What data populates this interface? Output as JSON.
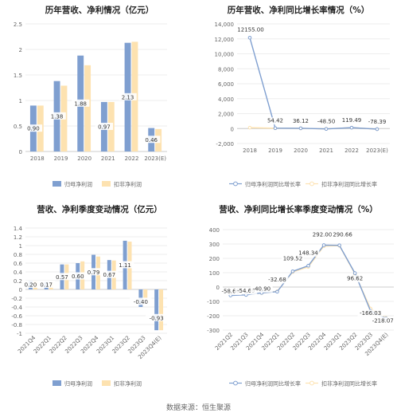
{
  "source_text": "数据来源：恒生聚源",
  "colors": {
    "blue": "#7f9fd0",
    "cream": "#fde2b0",
    "axis_text": "#666666",
    "grid": "#eeeeee",
    "title": "#222222"
  },
  "chart_data": [
    {
      "type": "bar",
      "title": "历年营收、净利情况（亿元）",
      "categories": [
        "2018",
        "2019",
        "2020",
        "2021",
        "2022",
        "2023(E)"
      ],
      "series": [
        {
          "name": "归母净利润",
          "values": [
            0.9,
            1.38,
            1.88,
            0.97,
            2.13,
            0.46
          ]
        },
        {
          "name": "扣非净利润",
          "values": [
            0.9,
            1.29,
            1.69,
            0.97,
            2.15,
            0.44
          ]
        }
      ],
      "data_labels": [
        "0.90",
        "1.38",
        "1.88",
        "0.97",
        "2.13",
        "0.46"
      ],
      "yticks": [
        "0",
        "0.5",
        "1",
        "1.5",
        "2",
        "2.5"
      ],
      "ylim": [
        0,
        2.5
      ],
      "legend": "bottom"
    },
    {
      "type": "line",
      "title": "历年营收、净利同比增长率情况（%）",
      "categories": [
        "2018",
        "2019",
        "2020",
        "2021",
        "2022",
        "2023(E)"
      ],
      "series": [
        {
          "name": "归母净利润同比增长率",
          "values": [
            12155.0,
            54.42,
            36.12,
            -48.5,
            119.49,
            -78.39
          ]
        },
        {
          "name": "扣非净利润同比增长率",
          "values": [
            120,
            43,
            31,
            -43,
            121,
            -80
          ]
        }
      ],
      "data_labels": [
        "12155.00",
        "54.42",
        "36.12",
        "-48.50",
        "119.49",
        "-78.39"
      ],
      "yticks": [
        "-2,000",
        "0",
        "2,000",
        "4,000",
        "6,000",
        "8,000",
        "10,000",
        "12,000",
        "14,000"
      ],
      "ylim": [
        -2000,
        14000
      ],
      "legend": "bottom"
    },
    {
      "type": "bar",
      "title": "营收、净利季度变动情况（亿元）",
      "categories": [
        "2021Q4",
        "2022Q1",
        "2022Q2",
        "2022Q3",
        "2022Q4",
        "2023Q1",
        "2023Q2",
        "2023Q3",
        "2023Q4(E)"
      ],
      "series": [
        {
          "name": "归母净利润",
          "values": [
            0.2,
            0.17,
            0.57,
            0.6,
            0.79,
            0.67,
            1.11,
            -0.4,
            -0.93
          ]
        },
        {
          "name": "扣非净利润",
          "values": [
            0.2,
            0.16,
            0.57,
            0.64,
            0.75,
            0.66,
            1.09,
            -0.2,
            -0.93
          ]
        }
      ],
      "data_labels": [
        "0.20",
        "0.17",
        "0.57",
        "0.60",
        "0.79",
        "0.67",
        "1.11",
        "-0.40",
        "-0.93"
      ],
      "yticks": [
        "-1",
        "-0.8",
        "-0.6",
        "-0.4",
        "-0.2",
        "0",
        "0.2",
        "0.4",
        "0.6",
        "0.8",
        "1",
        "1.2",
        "1.4"
      ],
      "ylim": [
        -1,
        1.4
      ],
      "legend": "bottom"
    },
    {
      "type": "line",
      "title": "营收、净利同比增长率季度变动情况（%）",
      "categories": [
        "2021Q2",
        "2021Q3",
        "2021Q4",
        "2022Q1",
        "2022Q2",
        "2022Q3",
        "2022Q4",
        "2023Q1",
        "2023Q2",
        "2023Q3",
        "2023Q4(E)"
      ],
      "series": [
        {
          "name": "归母净利润同比增长率",
          "values": [
            -58.6,
            -54.69,
            -40.9,
            -32.68,
            109.52,
            148.34,
            292.0,
            290.66,
            96.62,
            -166.03,
            -218.07
          ]
        },
        {
          "name": "扣非净利润同比增长率",
          "values": [
            -55,
            -52,
            -42,
            -30,
            105,
            140,
            285,
            288,
            92,
            -150,
            -215
          ]
        }
      ],
      "data_labels": [
        "-58.60",
        "-54.69",
        "-40.90",
        "-32.68",
        "109.52",
        "148.34",
        "292.00",
        "290.66",
        "96.62",
        "-166.03",
        "-218.07"
      ],
      "yticks": [
        "-300",
        "-200",
        "-100",
        "0",
        "100",
        "200",
        "300",
        "400"
      ],
      "ylim": [
        -300,
        400
      ],
      "legend": "bottom"
    }
  ]
}
